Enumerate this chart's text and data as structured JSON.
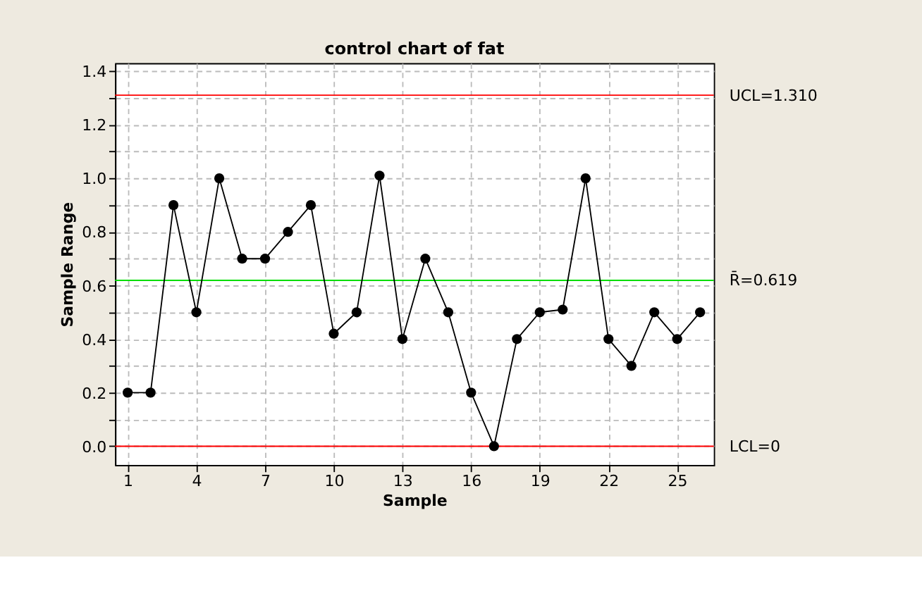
{
  "chart_data": {
    "type": "line",
    "title": "control chart of fat",
    "xlabel": "Sample",
    "ylabel": "Sample Range",
    "x": [
      1,
      2,
      3,
      4,
      5,
      6,
      7,
      8,
      9,
      10,
      11,
      12,
      13,
      14,
      15,
      16,
      17,
      18,
      19,
      20,
      21,
      22,
      23,
      24,
      25,
      26
    ],
    "series": [
      {
        "color": "#000000",
        "values": [
          0.2,
          0.2,
          0.9,
          0.5,
          1.0,
          0.7,
          0.7,
          0.8,
          0.9,
          0.42,
          0.5,
          1.01,
          0.4,
          0.7,
          0.5,
          0.2,
          0.0,
          0.4,
          0.5,
          0.51,
          1.0,
          0.4,
          0.3,
          0.5,
          0.4,
          0.5
        ]
      }
    ],
    "xlim": [
      0.45,
      26.6
    ],
    "ylim": [
      -0.07,
      1.43
    ],
    "xticks": [
      1,
      4,
      7,
      10,
      13,
      16,
      19,
      22,
      25
    ],
    "yticks": [
      {
        "value": 0.0,
        "label": "0.0"
      },
      {
        "value": 0.1,
        "label": null
      },
      0.2,
      {
        "value": 0.3,
        "label": null
      },
      0.4,
      {
        "value": 0.5,
        "label": null
      },
      0.6,
      {
        "value": 0.7,
        "label": null
      },
      0.8,
      {
        "value": 0.9,
        "label": null
      },
      {
        "value": 1.0,
        "label": "1.0"
      },
      {
        "value": 1.1,
        "label": null
      },
      1.2,
      {
        "value": 1.3,
        "label": null
      },
      1.4
    ],
    "ref_lines": [
      {
        "axis": "y",
        "value": 1.31,
        "label": "UCL=1.310",
        "color": "#ff0000"
      },
      {
        "axis": "y",
        "value": 0.619,
        "label": "R̄=0.619",
        "color": "#00dd00"
      },
      {
        "axis": "y",
        "value": 0.0,
        "label": "LCL=0",
        "color": "#ff0000"
      }
    ],
    "grid": true,
    "marker": "circle",
    "line_style": "solid"
  }
}
